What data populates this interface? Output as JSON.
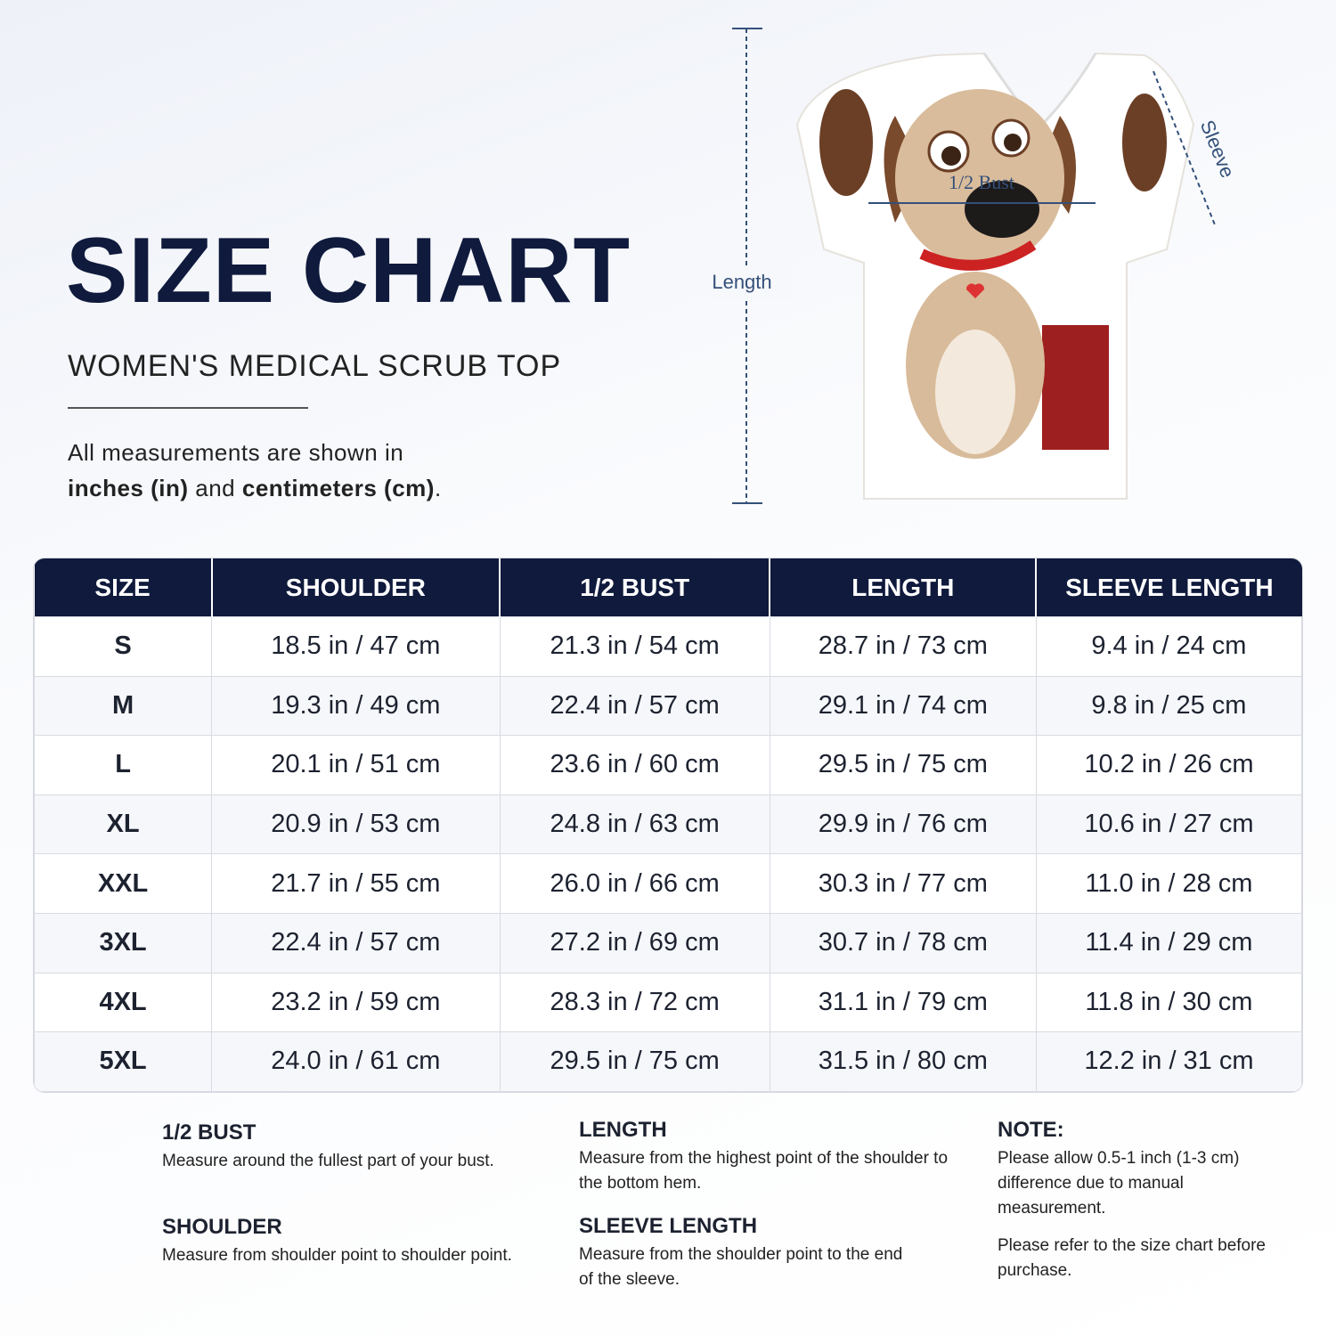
{
  "header": {
    "title": "SIZE CHART",
    "subtitle": "WOMEN'S MEDICAL SCRUB TOP",
    "intro": [
      "All measurements are shown in",
      "inches (in)",
      "and",
      "centimeters (cm)",
      "."
    ]
  },
  "diagram": {
    "length": "Length",
    "bust": "1/2 Bust",
    "sleeve": "Sleeve"
  },
  "table": {
    "headers": [
      "SIZE",
      "SHOULDER",
      "1/2 BUST",
      "LENGTH",
      "SLEEVE LENGTH"
    ],
    "rows": [
      [
        "S",
        "18.5 in / 47 cm",
        "21.3 in / 54 cm",
        "28.7 in / 73 cm",
        "9.4 in / 24 cm"
      ],
      [
        "M",
        "19.3 in / 49 cm",
        "22.4 in / 57 cm",
        "29.1 in / 74 cm",
        "9.8 in / 25 cm"
      ],
      [
        "L",
        "20.1 in / 51 cm",
        "23.6 in / 60 cm",
        "29.5 in / 75 cm",
        "10.2 in / 26 cm"
      ],
      [
        "XL",
        "20.9 in / 53 cm",
        "24.8 in / 63 cm",
        "29.9 in / 76 cm",
        "10.6 in / 27 cm"
      ],
      [
        "XXL",
        "21.7 in / 55 cm",
        "26.0 in / 66 cm",
        "30.3 in / 77 cm",
        "11.0 in / 28 cm"
      ],
      [
        "3XL",
        "22.4 in / 57 cm",
        "27.2 in / 69 cm",
        "30.7 in / 78 cm",
        "11.4 in / 29 cm"
      ],
      [
        "4XL",
        "23.2 in / 59 cm",
        "28.3 in / 72 cm",
        "31.1 in / 79 cm",
        "11.8 in / 30 cm"
      ],
      [
        "5XL",
        "24.0 in / 61 cm",
        "29.5 in / 75 cm",
        "31.5 in / 80 cm",
        "12.2 in / 31 cm"
      ]
    ]
  },
  "notes": [
    {
      "title": "1/2 BUST",
      "text": [
        "Measure around the fullest part of your bust."
      ]
    },
    {
      "title": "SHOULDER",
      "text": [
        "Measure from shoulder point to shoulder point."
      ]
    },
    {
      "title": "LENGTH",
      "text": [
        "Measure from the highest point of the shoulder to the bottom hem."
      ]
    },
    {
      "title": "SLEEVE LENGTH",
      "text": [
        "Measure from the shoulder point to the end of the sleeve."
      ]
    },
    {
      "title": "NOTE:",
      "text": [
        "Please allow 0.5-1 inch (1-3 cm) difference due to manual measurement.",
        "Please refer to the size chart before purchase."
      ]
    }
  ]
}
